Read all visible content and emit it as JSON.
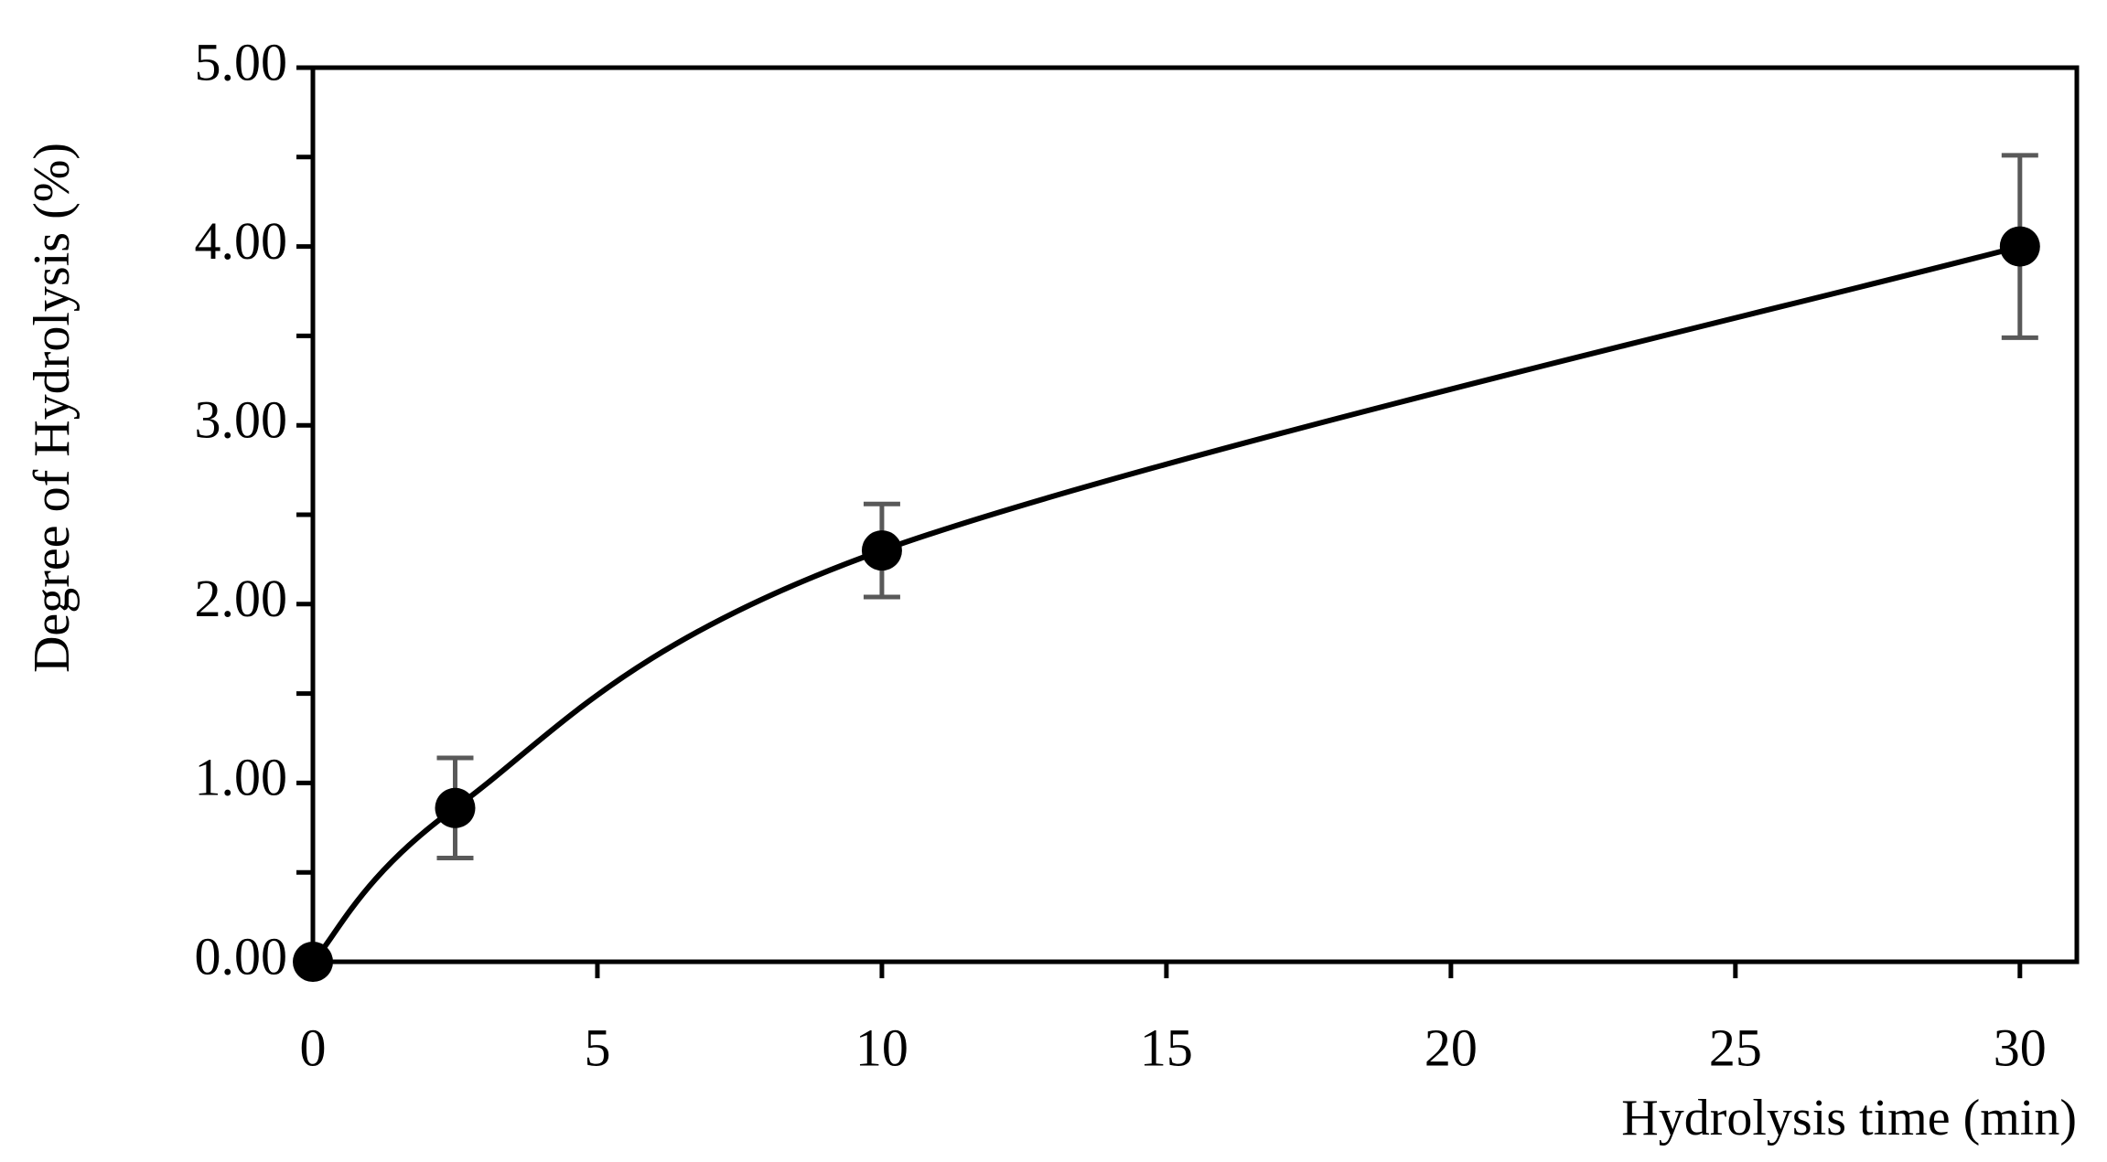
{
  "chart_data": {
    "type": "line",
    "x_label": "Hydrolysis time (min)",
    "y_label": "Degree of Hydrolysis (%)",
    "x": [
      0,
      2.5,
      10,
      30
    ],
    "values": [
      0,
      0.86,
      2.3,
      4.0
    ],
    "errors": [
      0,
      0.28,
      0.26,
      0.51
    ],
    "color": "#000000",
    "error_color": "#595959",
    "smooth": true,
    "xlim": [
      0,
      31
    ],
    "ylim": [
      0,
      5
    ],
    "xticks": [
      0,
      5,
      10,
      15,
      20,
      25,
      30
    ],
    "yticks": [
      {
        "value": 0,
        "label": "0.00"
      },
      {
        "value": 1,
        "label": "1.00"
      },
      {
        "value": 2,
        "label": "2.00"
      },
      {
        "value": 3,
        "label": "3.00"
      },
      {
        "value": 4,
        "label": "4.00"
      },
      {
        "value": 5,
        "label": "5.00"
      }
    ],
    "yminorticks": [
      0.5,
      1.5,
      2.5,
      3.5,
      4.5
    ],
    "grid": false
  }
}
